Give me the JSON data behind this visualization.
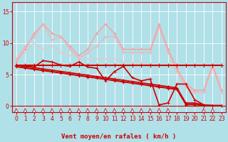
{
  "background_color": "#b0e0e8",
  "grid_color": "#a0d4dc",
  "xlabel": "Vent moyen/en rafales ( km/h )",
  "ylabel_ticks": [
    0,
    5,
    10,
    15
  ],
  "xlim": [
    -0.5,
    23.5
  ],
  "ylim": [
    -1.0,
    16.5
  ],
  "x_ticks": [
    0,
    1,
    2,
    3,
    4,
    5,
    6,
    7,
    8,
    9,
    10,
    11,
    12,
    13,
    14,
    15,
    16,
    17,
    18,
    19,
    20,
    21,
    22,
    23
  ],
  "lines": [
    {
      "x": [
        0,
        1,
        2,
        3,
        4,
        5,
        6,
        7,
        8,
        9,
        10,
        11,
        12,
        13,
        14,
        15,
        16,
        17,
        18,
        19,
        20,
        21,
        22,
        23
      ],
      "y": [
        6.5,
        6.5,
        6.5,
        6.5,
        6.5,
        6.5,
        6.5,
        6.5,
        6.5,
        6.5,
        6.5,
        6.5,
        6.5,
        6.5,
        6.5,
        6.5,
        6.5,
        6.5,
        6.5,
        6.5,
        6.5,
        6.5,
        6.5,
        6.5
      ],
      "color": "#cc0000",
      "lw": 1.5,
      "marker": "+",
      "ms": 4.0,
      "alpha": 1.0,
      "zorder": 5
    },
    {
      "x": [
        0,
        1,
        2,
        3,
        4,
        5,
        6,
        7,
        8,
        9,
        10,
        11,
        12,
        13,
        14,
        15,
        16,
        17,
        18,
        19,
        20,
        21,
        22,
        23
      ],
      "y": [
        6.5,
        6.3,
        6.1,
        5.9,
        5.7,
        5.5,
        5.3,
        5.1,
        4.9,
        4.7,
        4.5,
        4.3,
        4.1,
        3.9,
        3.7,
        3.5,
        3.3,
        3.1,
        2.9,
        0.5,
        0.5,
        0.2,
        0.1,
        0.1
      ],
      "color": "#cc0000",
      "lw": 1.2,
      "marker": "+",
      "ms": 3.5,
      "alpha": 1.0,
      "zorder": 4
    },
    {
      "x": [
        0,
        1,
        2,
        3,
        4,
        5,
        6,
        7,
        8,
        9,
        10,
        11,
        12,
        13,
        14,
        15,
        16,
        17,
        18,
        19,
        20,
        21,
        22,
        23
      ],
      "y": [
        6.5,
        6.3,
        6.2,
        7.2,
        7.0,
        6.5,
        6.3,
        7.0,
        6.2,
        6.0,
        4.0,
        5.5,
        6.3,
        4.5,
        4.0,
        4.3,
        0.2,
        0.5,
        3.5,
        3.5,
        1.0,
        0.2,
        0.1,
        0.1
      ],
      "color": "#cc0000",
      "lw": 1.2,
      "marker": "+",
      "ms": 3.5,
      "alpha": 1.0,
      "zorder": 4
    },
    {
      "x": [
        0,
        1,
        2,
        3,
        4,
        5,
        6,
        7,
        8,
        9,
        10,
        11,
        12,
        13,
        14,
        15,
        16,
        17,
        18,
        19,
        20,
        21,
        22,
        23
      ],
      "y": [
        6.3,
        6.1,
        5.9,
        5.7,
        5.5,
        5.3,
        5.1,
        4.9,
        4.7,
        4.5,
        4.3,
        4.1,
        3.9,
        3.7,
        3.5,
        3.3,
        3.1,
        2.9,
        2.7,
        0.3,
        0.3,
        0.1,
        0.05,
        0.05
      ],
      "color": "#cc0000",
      "lw": 1.0,
      "marker": "+",
      "ms": 3.0,
      "alpha": 1.0,
      "zorder": 4
    },
    {
      "x": [
        0,
        1,
        2,
        3,
        4,
        5,
        6,
        7,
        8,
        9,
        10,
        11,
        12,
        13,
        14,
        15,
        16,
        17,
        18,
        19,
        20,
        21,
        22,
        23
      ],
      "y": [
        6.2,
        6.0,
        5.8,
        5.6,
        5.4,
        5.2,
        5.0,
        4.8,
        4.6,
        4.4,
        4.2,
        4.0,
        3.8,
        3.6,
        3.4,
        3.2,
        3.0,
        2.8,
        2.6,
        0.2,
        0.2,
        0.1,
        0.05,
        0.05
      ],
      "color": "#cc0000",
      "lw": 0.8,
      "marker": "+",
      "ms": 2.5,
      "alpha": 1.0,
      "zorder": 3
    },
    {
      "x": [
        0,
        1,
        2,
        3,
        4,
        5,
        6,
        7,
        8,
        9,
        10,
        11,
        12,
        13,
        14,
        15,
        16,
        17,
        18,
        19,
        20,
        21,
        22,
        23
      ],
      "y": [
        7.0,
        9.0,
        11.5,
        13.0,
        11.5,
        11.0,
        9.5,
        8.0,
        9.0,
        11.5,
        13.0,
        11.5,
        9.0,
        9.0,
        9.0,
        9.0,
        13.0,
        9.0,
        6.0,
        3.5,
        2.5,
        2.5,
        6.5,
        2.5
      ],
      "color": "#ff9999",
      "lw": 1.0,
      "marker": "+",
      "ms": 3.0,
      "alpha": 0.9,
      "zorder": 2
    },
    {
      "x": [
        0,
        1,
        2,
        3,
        4,
        5,
        6,
        7,
        8,
        9,
        10,
        11,
        12,
        13,
        14,
        15,
        16,
        17,
        18,
        19,
        20,
        21,
        22,
        23
      ],
      "y": [
        7.5,
        9.5,
        11.0,
        13.0,
        10.5,
        11.0,
        9.0,
        7.5,
        8.5,
        9.5,
        11.0,
        11.0,
        8.5,
        8.5,
        8.5,
        8.5,
        12.5,
        8.5,
        5.5,
        3.0,
        2.2,
        2.2,
        6.2,
        2.2
      ],
      "color": "#ffaaaa",
      "lw": 0.9,
      "marker": "+",
      "ms": 2.5,
      "alpha": 0.8,
      "zorder": 2
    },
    {
      "x": [
        0,
        1,
        2,
        3,
        4,
        5,
        6,
        7,
        8,
        9,
        10,
        11,
        12,
        13,
        14,
        15,
        16,
        17,
        18,
        19,
        20,
        21,
        22,
        23
      ],
      "y": [
        7.5,
        8.5,
        10.0,
        9.0,
        9.5,
        8.5,
        8.0,
        8.0,
        7.5,
        7.5,
        7.5,
        7.5,
        7.0,
        7.0,
        7.0,
        6.5,
        6.5,
        6.5,
        6.0,
        3.0,
        2.5,
        2.5,
        6.0,
        2.5
      ],
      "color": "#ffbbbb",
      "lw": 0.8,
      "marker": "+",
      "ms": 2.0,
      "alpha": 0.7,
      "zorder": 1
    }
  ],
  "wind_arrows_x": [
    0,
    1,
    2,
    3,
    4,
    5,
    6,
    7,
    8,
    9,
    10,
    11,
    12,
    13,
    14,
    15,
    16,
    17,
    21,
    22
  ],
  "wind_arrow_angles": [
    90,
    80,
    90,
    90,
    90,
    90,
    90,
    90,
    90,
    90,
    70,
    90,
    70,
    90,
    60,
    90,
    50,
    30,
    130,
    150
  ],
  "title_fontsize": 7,
  "label_fontsize": 6.5,
  "tick_fontsize": 5.5
}
